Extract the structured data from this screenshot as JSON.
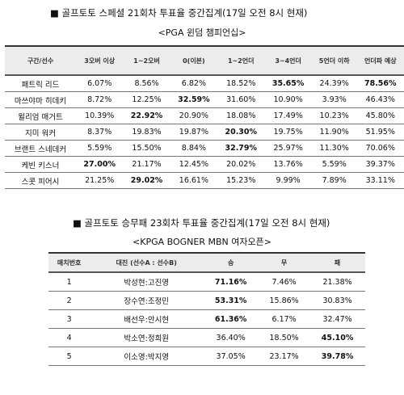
{
  "table1": {
    "title": "■ 골프토토 스페셜 21회차 투표율 중간집계(17일 오전 8시 현재)",
    "subtitle": "<PGA 윈덤 챔피언십>",
    "headers": [
      "구간/선수",
      "3오버 이상",
      "1~2오버",
      "0(이븐)",
      "1~2언더",
      "3~4언더",
      "5언더 이하",
      "언더파 예상"
    ],
    "rows": [
      {
        "cells": [
          "패트릭 리드",
          "6.07%",
          "8.56%",
          "6.82%",
          "18.52%",
          "35.65%",
          "24.39%",
          "78.56%"
        ],
        "bold": [
          5,
          7
        ]
      },
      {
        "cells": [
          "마쓰야마 히데키",
          "8.72%",
          "12.25%",
          "32.59%",
          "31.60%",
          "10.90%",
          "3.93%",
          "46.43%"
        ],
        "bold": [
          3
        ]
      },
      {
        "cells": [
          "윌리엄 매거트",
          "10.39%",
          "22.92%",
          "20.90%",
          "18.08%",
          "17.49%",
          "10.23%",
          "45.80%"
        ],
        "bold": [
          2
        ]
      },
      {
        "cells": [
          "지미 워커",
          "8.37%",
          "19.83%",
          "19.87%",
          "20.30%",
          "19.75%",
          "11.90%",
          "51.95%"
        ],
        "bold": [
          4
        ]
      },
      {
        "cells": [
          "브랜트 스네데커",
          "5.59%",
          "15.50%",
          "8.84%",
          "32.79%",
          "25.97%",
          "11.30%",
          "70.06%"
        ],
        "bold": [
          4
        ]
      },
      {
        "cells": [
          "케빈 키스너",
          "27.00%",
          "21.17%",
          "12.45%",
          "20.02%",
          "13.76%",
          "5.59%",
          "39.37%"
        ],
        "bold": [
          1
        ]
      },
      {
        "cells": [
          "스콧 피어시",
          "21.25%",
          "29.02%",
          "16.61%",
          "15.23%",
          "9.99%",
          "7.89%",
          "33.11%"
        ],
        "bold": [
          2
        ]
      }
    ]
  },
  "table2": {
    "title": "■ 골프토토 승무패 23회차 투표율 중간집계(17일 오전 8시 현재)",
    "subtitle": "<KPGA BOGNER MBN 여자오픈>",
    "headers": [
      "매치번호",
      "대진 (선수A : 선수B)",
      "승",
      "무",
      "패"
    ],
    "rows": [
      {
        "cells": [
          "1",
          "박성현:고진영",
          "71.16%",
          "7.46%",
          "21.38%"
        ],
        "bold": [
          2
        ]
      },
      {
        "cells": [
          "2",
          "장수연:조정민",
          "53.31%",
          "15.86%",
          "30.83%"
        ],
        "bold": [
          2
        ]
      },
      {
        "cells": [
          "3",
          "배선우:안시현",
          "61.36%",
          "6.17%",
          "32.47%"
        ],
        "bold": [
          2
        ]
      },
      {
        "cells": [
          "4",
          "박소연:정희원",
          "36.40%",
          "18.50%",
          "45.10%"
        ],
        "bold": [
          4
        ]
      },
      {
        "cells": [
          "5",
          "이소영:박지영",
          "37.05%",
          "23.17%",
          "39.78%"
        ],
        "bold": [
          4
        ]
      }
    ]
  }
}
